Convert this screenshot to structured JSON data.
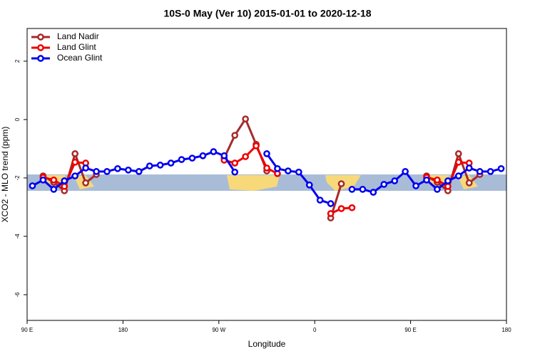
{
  "chart_data": {
    "type": "line",
    "title": "10S-0 May (Ver 10)   2015-01-01 to 2020-12-18",
    "x_label": "Longitude",
    "y_label": "XCO2 - MLO trend (ppm)",
    "x": [
      95,
      105,
      115,
      125,
      135,
      145,
      155,
      165,
      175,
      185,
      195,
      205,
      215,
      225,
      235,
      245,
      255,
      265,
      275,
      285,
      295,
      305,
      315,
      325,
      335,
      345,
      355,
      365,
      375,
      385,
      395,
      405,
      415,
      425,
      435,
      445,
      455,
      465,
      475,
      485,
      495,
      505,
      515,
      525,
      535
    ],
    "series": [
      {
        "name": "Land Nadir",
        "color": "#a52a2a",
        "values": [
          null,
          -1.93,
          -2.15,
          -2.44,
          -1.17,
          -2.17,
          -1.88,
          null,
          null,
          null,
          null,
          null,
          null,
          null,
          null,
          null,
          null,
          null,
          -1.32,
          -0.54,
          0.02,
          -0.85,
          -1.76,
          null,
          null,
          null,
          null,
          null,
          -3.37,
          -2.2,
          null,
          null,
          null,
          null,
          null,
          null,
          null,
          -1.93,
          -2.15,
          -2.44,
          -1.17,
          -2.17,
          -1.88,
          null,
          null
        ]
      },
      {
        "name": "Land Glint",
        "color": "#ee0000",
        "values": [
          null,
          -1.98,
          -2.07,
          -2.29,
          -1.46,
          -1.49,
          null,
          null,
          null,
          null,
          null,
          null,
          null,
          null,
          null,
          null,
          null,
          null,
          -1.39,
          -1.49,
          -1.27,
          -0.9,
          -1.66,
          -1.85,
          null,
          null,
          null,
          null,
          -3.22,
          -3.05,
          -3.02,
          null,
          null,
          null,
          null,
          null,
          null,
          -1.98,
          -2.07,
          -2.29,
          -1.46,
          -1.49,
          null,
          null,
          null
        ]
      },
      {
        "name": "Ocean Glint",
        "color": "#0000ee",
        "values": [
          -2.27,
          -2.07,
          -2.39,
          -2.1,
          -1.93,
          -1.66,
          -1.78,
          -1.78,
          -1.68,
          -1.73,
          -1.78,
          -1.59,
          -1.56,
          -1.49,
          -1.37,
          -1.32,
          -1.24,
          -1.1,
          -1.24,
          -1.8,
          null,
          null,
          -1.17,
          -1.68,
          -1.76,
          -1.8,
          -2.24,
          -2.76,
          -2.88,
          null,
          -2.39,
          -2.39,
          -2.49,
          -2.22,
          -2.1,
          -1.78,
          -2.27,
          -2.07,
          -2.39,
          -2.1,
          -1.93,
          -1.66,
          -1.78,
          -1.78,
          -1.68
        ]
      }
    ],
    "xlim": [
      90,
      540
    ],
    "xticks": [
      {
        "value": 90,
        "label": "90 E"
      },
      {
        "value": 180,
        "label": "180"
      },
      {
        "value": 270,
        "label": "90 W"
      },
      {
        "value": 360,
        "label": "0"
      },
      {
        "value": 450,
        "label": "90 E"
      },
      {
        "value": 540,
        "label": "180"
      }
    ],
    "ylim": [
      -6.88,
      3.12
    ],
    "yticks": [
      -6,
      -4,
      -2,
      0,
      2
    ],
    "legend": "top-left"
  }
}
